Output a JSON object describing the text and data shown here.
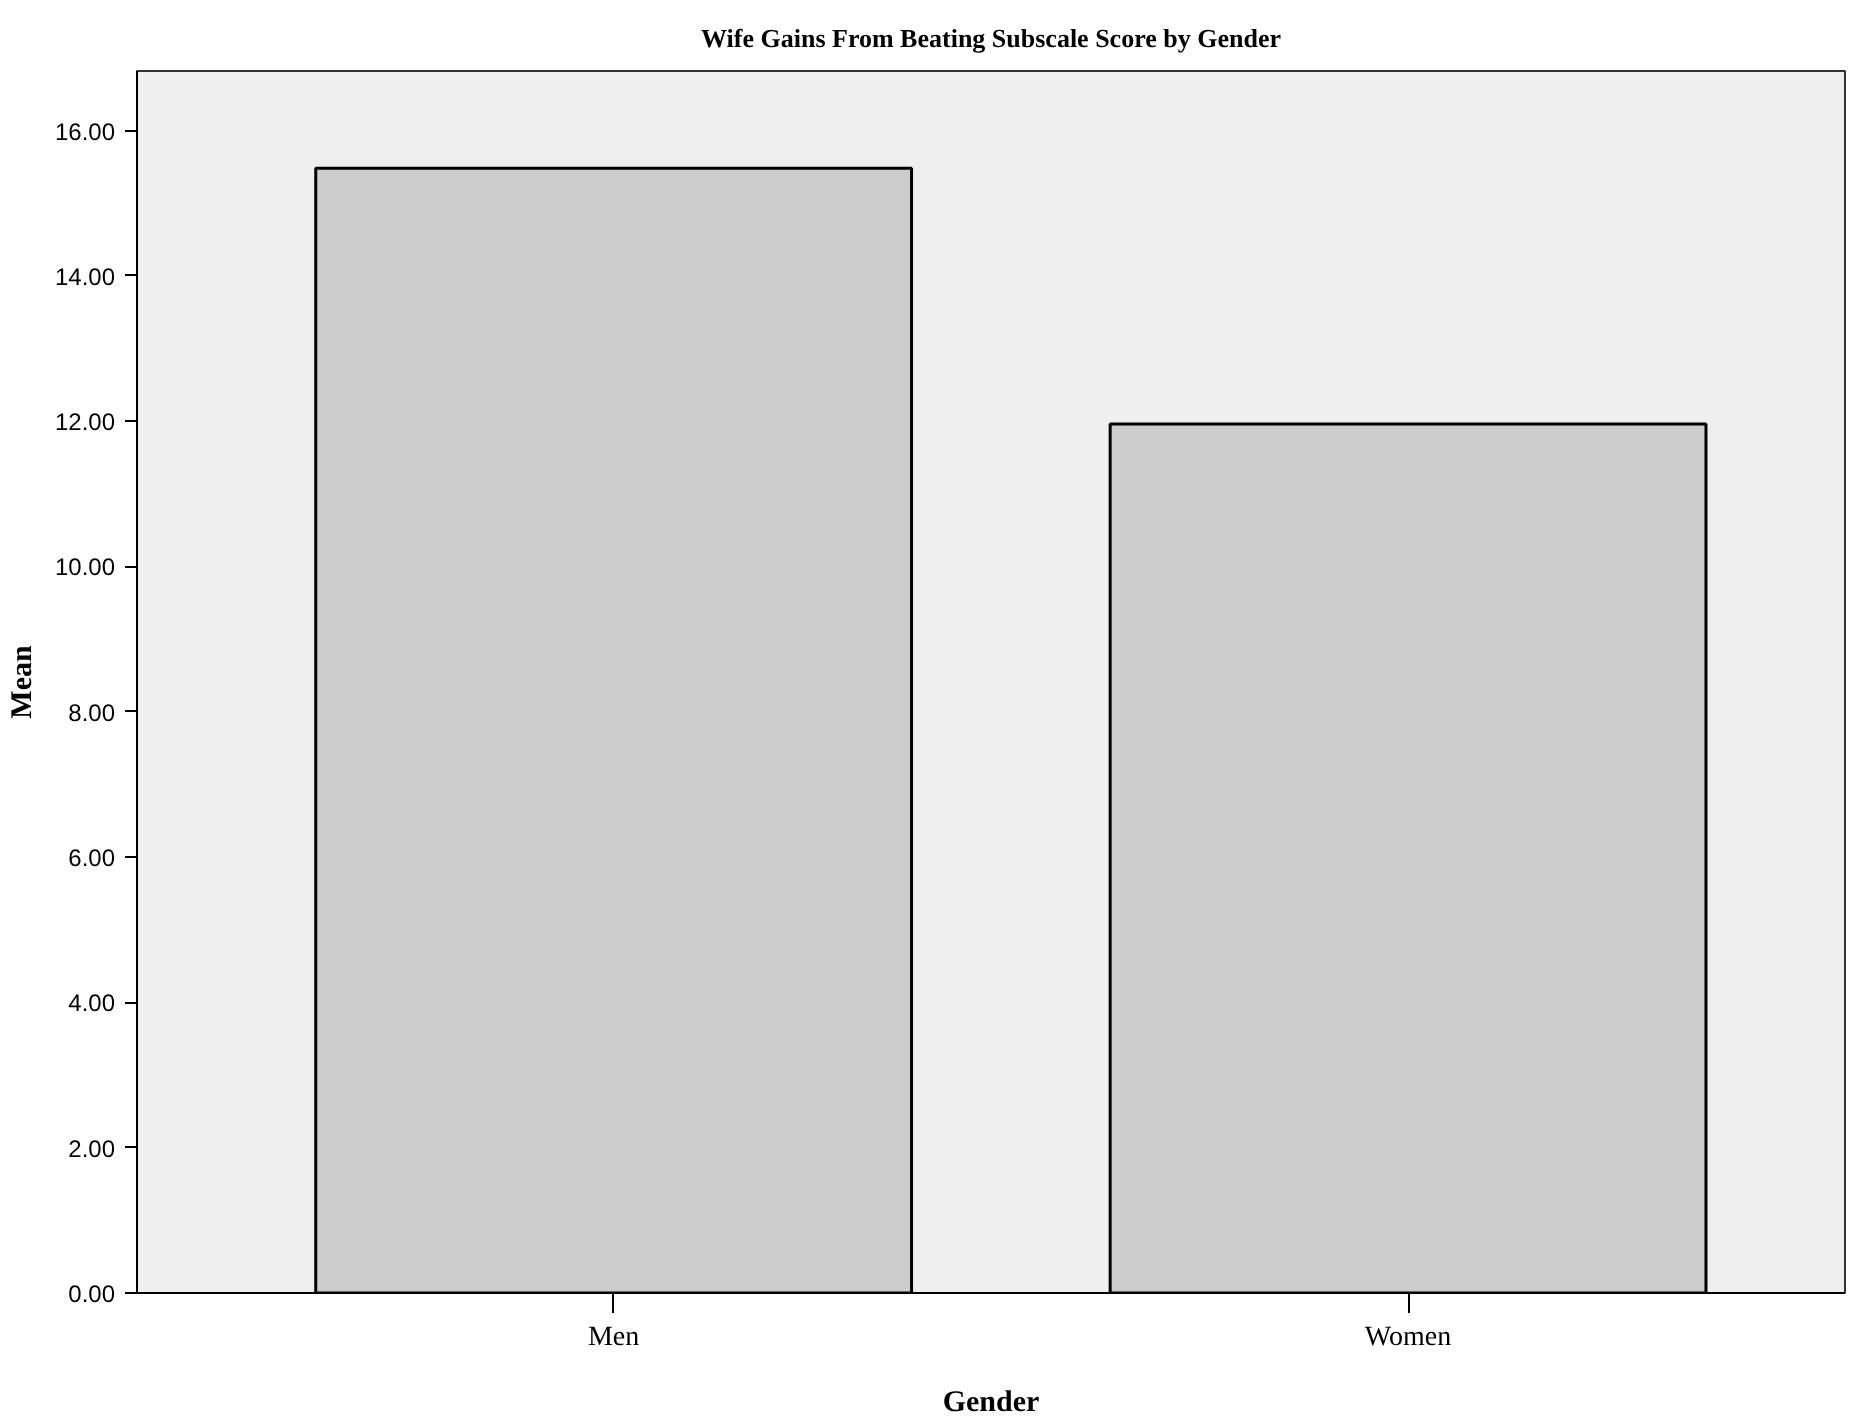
{
  "chart_data": {
    "type": "bar",
    "title": "Wife Gains From Beating Subscale Score by Gender",
    "xlabel": "Gender",
    "ylabel": "Mean",
    "categories": [
      "Men",
      "Women"
    ],
    "values": [
      15.48,
      11.96
    ],
    "color": "#cccccc",
    "ylim": [
      0,
      16.82
    ],
    "yticks": [
      {
        "value": 0,
        "label": "0.00"
      },
      {
        "value": 2,
        "label": "2.00"
      },
      {
        "value": 4,
        "label": "4.00"
      },
      {
        "value": 6,
        "label": "6.00"
      },
      {
        "value": 8,
        "label": "8.00"
      },
      {
        "value": 10,
        "label": "10.00"
      },
      {
        "value": 12,
        "label": "12.00"
      },
      {
        "value": 14,
        "label": "14.00"
      },
      {
        "value": 16,
        "label": "16.00"
      }
    ],
    "grid": false
  }
}
